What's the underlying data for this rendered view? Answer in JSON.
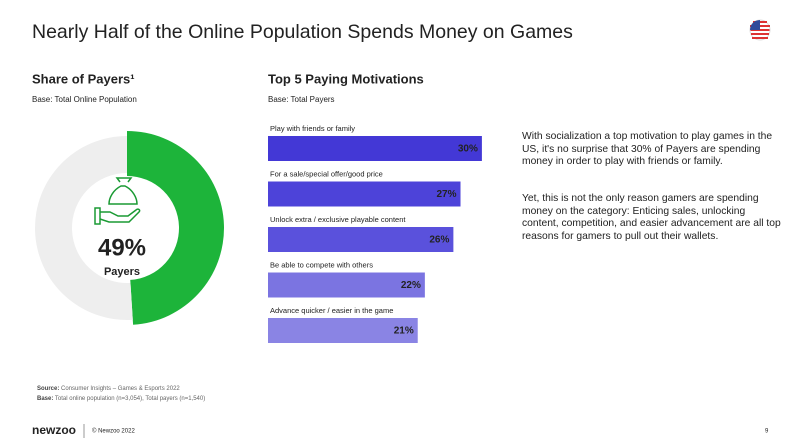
{
  "header": {
    "title": "Nearly Half of the Online Population Spends Money on Games"
  },
  "chart_data": [
    {
      "type": "donut",
      "title": "Share of Payers¹",
      "subtitle": "Base: Total Online Population",
      "categories": [
        "Payers",
        null
      ],
      "values": [
        49,
        51
      ],
      "value_labels": [
        "49%",
        null
      ],
      "colors": [
        "#1db43a",
        "#eeeeee"
      ]
    },
    {
      "type": "hbar",
      "title": "Top 5 Paying Motivations",
      "subtitle": "Base: Total Payers",
      "categories": [
        "Play with friends or family",
        "For a sale/special offer/good price",
        "Unlock extra / exclusive playable content",
        "Be able to compete with others",
        "Advance quicker / easier in the game"
      ],
      "values": [
        30,
        27,
        26,
        22,
        21
      ],
      "value_labels": [
        "30%",
        "27%",
        "26%",
        "22%",
        "21%"
      ],
      "colors": [
        "#4338d6",
        "#4d43d9",
        "#5a51dc",
        "#7b74e1",
        "#8a84e4"
      ]
    }
  ],
  "body_text": [
    "With socialization a top motivation to play games in the US, it's no surprise that 30% of Payers are spending money in order to play with friends or family.",
    "Yet, this is not the only reason gamers are spending money on the category: Enticing sales, unlocking content, competition, and easier advancement are all top reasons for gamers to pull out their wallets."
  ],
  "notes": {
    "source_label": "Source:",
    "source": "Consumer Insights – Games & Esports 2022",
    "base_label": "Base:",
    "base": "Total online population (n=3,054), Total payers (n=1,540)"
  },
  "footer": {
    "brand": "newzoo",
    "copyright": "© Newzoo 2022",
    "page": "9"
  }
}
